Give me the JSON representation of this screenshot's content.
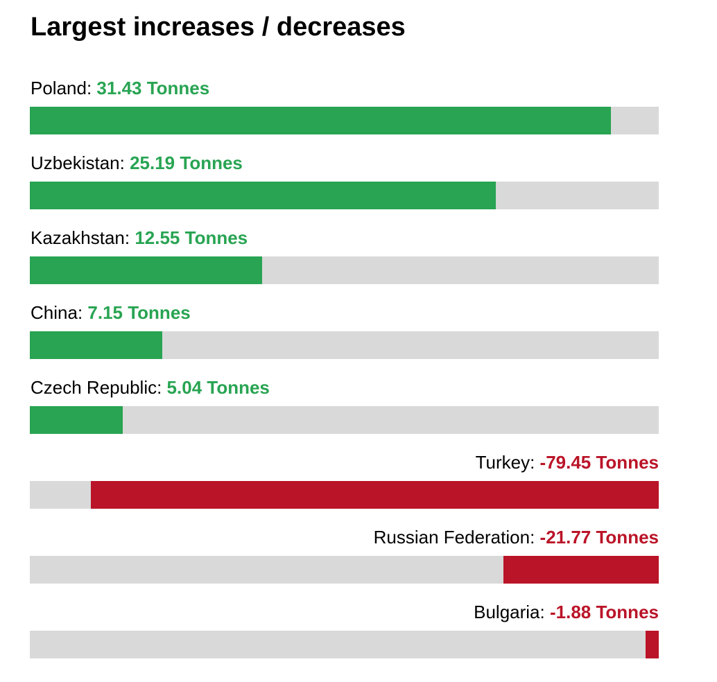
{
  "chart_data": {
    "type": "bar",
    "title": "Largest increases / decreases",
    "unit": "Tonnes",
    "scale": {
      "increase_max": 34.0,
      "decrease_max": 88.0
    },
    "colors": {
      "increase": "#28a452",
      "decrease": "#ba1428",
      "track": "#d9d9d9",
      "text": "#000000"
    },
    "rows": [
      {
        "category": "Poland",
        "value": 31.43,
        "value_label": "31.43 Tonnes"
      },
      {
        "category": "Uzbekistan",
        "value": 25.19,
        "value_label": "25.19 Tonnes"
      },
      {
        "category": "Kazakhstan",
        "value": 12.55,
        "value_label": "12.55 Tonnes"
      },
      {
        "category": "China",
        "value": 7.15,
        "value_label": "7.15 Tonnes"
      },
      {
        "category": "Czech Republic",
        "value": 5.04,
        "value_label": "5.04 Tonnes"
      },
      {
        "category": "Turkey",
        "value": -79.45,
        "value_label": "-79.45 Tonnes"
      },
      {
        "category": "Russian Federation",
        "value": -21.77,
        "value_label": "-21.77 Tonnes"
      },
      {
        "category": "Bulgaria",
        "value": -1.88,
        "value_label": "-1.88 Tonnes"
      }
    ]
  }
}
